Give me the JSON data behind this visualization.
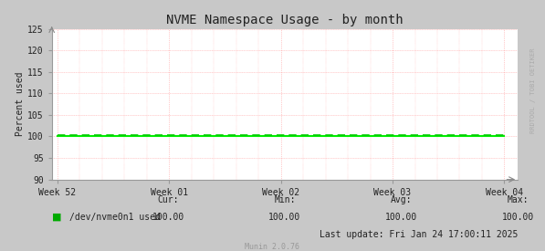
{
  "title": "NVME Namespace Usage - by month",
  "ylabel": "Percent used",
  "bg_color": "#c8c8c8",
  "plot_bg_color": "#ffffff",
  "grid_h_color": "#ff9999",
  "grid_v_color": "#ff9999",
  "line_value": 100.0,
  "line_solid_color": "#00ee00",
  "line_dash_color": "#00cc00",
  "ylim": [
    90,
    125
  ],
  "yticks": [
    90,
    95,
    100,
    105,
    110,
    115,
    120,
    125
  ],
  "x_labels": [
    "Week 52",
    "Week 01",
    "Week 02",
    "Week 03",
    "Week 04"
  ],
  "x_positions": [
    0,
    1,
    2,
    3,
    4
  ],
  "legend_label": "/dev/nvme0n1 used",
  "legend_color": "#00aa00",
  "cur": "100.00",
  "min": "100.00",
  "avg": "100.00",
  "max": "100.00",
  "last_update": "Last update: Fri Jan 24 17:00:11 2025",
  "munin_version": "Munin 2.0.76",
  "watermark": "RRDTOOL / TOBI OETIKER",
  "title_fontsize": 10,
  "axis_fontsize": 7,
  "label_fontsize": 7,
  "mono_fontsize": 7,
  "n_points": 600
}
